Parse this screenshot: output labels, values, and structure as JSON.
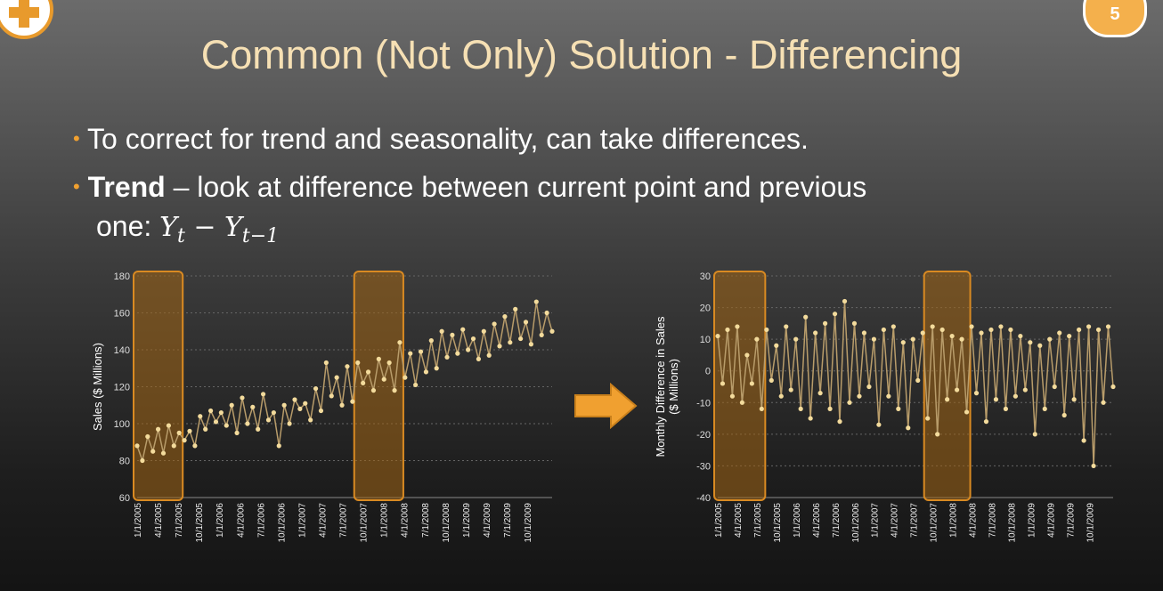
{
  "slide": {
    "number": "5",
    "title": "Common (Not Only) Solution - Differencing",
    "bullet1": "To correct for trend and seasonality, can take differences.",
    "bullet2_bold": "Trend",
    "bullet2_rest": " – look at difference between current point and previous",
    "bullet2_line2": "one: ",
    "formula": {
      "Y": "Y",
      "t": "t",
      "minus": " − ",
      "t_minus_1": "t−1"
    }
  },
  "colors": {
    "accent": "#e89a2c",
    "line": "#b89c6a",
    "marker": "#f3db9c",
    "highlight": "#c87f1c"
  },
  "chart_data": [
    {
      "type": "line",
      "title": "",
      "ylabel": "Sales ($ Millions)",
      "ylim": [
        60,
        180
      ],
      "yticks": [
        60,
        80,
        100,
        120,
        140,
        160,
        180
      ],
      "xticks": [
        "1/1/2005",
        "4/1/2005",
        "7/1/2005",
        "10/1/2005",
        "1/1/2006",
        "4/1/2006",
        "7/1/2006",
        "10/1/2006",
        "1/1/2007",
        "4/1/2007",
        "7/1/2007",
        "10/1/2007",
        "1/1/2008",
        "4/1/2008",
        "7/1/2008",
        "10/1/2008",
        "1/1/2009",
        "4/1/2009",
        "7/1/2009",
        "10/1/2009"
      ],
      "highlight_ranges": [
        [
          "1/1/2005",
          "7/1/2005"
        ],
        [
          "7/1/2007",
          "1/1/2008"
        ]
      ],
      "grid": true,
      "series": [
        {
          "values": [
            88,
            80,
            93,
            85,
            97,
            84,
            99,
            88,
            95,
            91,
            96,
            88,
            104,
            97,
            107,
            101,
            106,
            99,
            110,
            95,
            114,
            100,
            109,
            97,
            116,
            102,
            106,
            88,
            110,
            100,
            113,
            108,
            111,
            102,
            119,
            107,
            133,
            115,
            125,
            110,
            131,
            112,
            133,
            122,
            128,
            118,
            135,
            124,
            133,
            118,
            144,
            125,
            138,
            121,
            139,
            128,
            145,
            130,
            150,
            136,
            148,
            138,
            151,
            140,
            146,
            135,
            150,
            137,
            154,
            142,
            158,
            144,
            162,
            146,
            155,
            143,
            166,
            148,
            160,
            150
          ]
        }
      ]
    },
    {
      "type": "line",
      "title": "",
      "ylabel": "Monthly Difference in Sales ($ Millions)",
      "ylim": [
        -40,
        30
      ],
      "yticks": [
        -40,
        -30,
        -20,
        -10,
        0,
        10,
        20,
        30
      ],
      "xticks": [
        "1/1/2005",
        "4/1/2005",
        "7/1/2005",
        "10/1/2005",
        "1/1/2006",
        "4/1/2006",
        "7/1/2006",
        "10/1/2006",
        "1/1/2007",
        "4/1/2007",
        "7/1/2007",
        "10/1/2007",
        "1/1/2008",
        "4/1/2008",
        "7/1/2008",
        "10/1/2008",
        "1/1/2009",
        "4/1/2009",
        "7/1/2009",
        "10/1/2009"
      ],
      "highlight_ranges": [
        [
          "1/1/2005",
          "7/1/2005"
        ],
        [
          "7/1/2007",
          "1/1/2008"
        ]
      ],
      "grid": true,
      "series": [
        {
          "values": [
            11,
            -4,
            13,
            -8,
            14,
            -10,
            5,
            -4,
            10,
            -12,
            13,
            -3,
            8,
            -8,
            14,
            -6,
            10,
            -12,
            17,
            -15,
            12,
            -7,
            15,
            -12,
            18,
            -16,
            22,
            -10,
            15,
            -8,
            12,
            -5,
            10,
            -17,
            13,
            -8,
            14,
            -12,
            9,
            -18,
            10,
            -3,
            12,
            -15,
            14,
            -20,
            13,
            -9,
            11,
            -6,
            10,
            -13,
            14,
            -7,
            12,
            -16,
            13,
            -9,
            14,
            -12,
            13,
            -8,
            11,
            -6,
            9,
            -20,
            8,
            -12,
            10,
            -5,
            12,
            -14,
            11,
            -9,
            13,
            -22,
            14,
            -30,
            13,
            -10,
            14,
            -5
          ]
        }
      ]
    }
  ]
}
